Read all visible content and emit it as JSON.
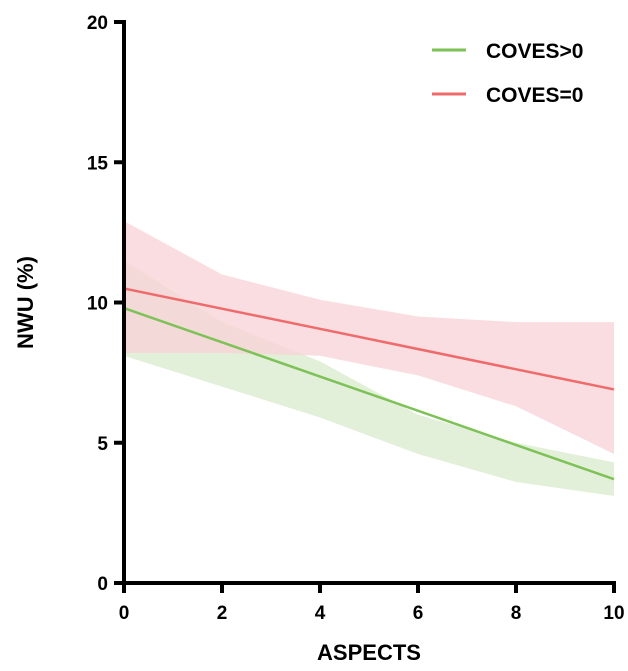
{
  "chart_data": {
    "type": "line",
    "title": "",
    "xlabel": "ASPECTS",
    "ylabel": "NWU (%)",
    "xlim": [
      0,
      10
    ],
    "ylim": [
      0,
      20
    ],
    "xticks": [
      0,
      2,
      4,
      6,
      8,
      10
    ],
    "yticks": [
      0,
      5,
      10,
      15,
      20
    ],
    "grid": false,
    "legend_position": "top-right",
    "series": [
      {
        "name": "COVES>0",
        "color": "#7dc157",
        "band_color": "#d9ebcc",
        "x": [
          0,
          10
        ],
        "y": [
          9.8,
          3.7
        ],
        "ci_x": [
          0,
          2,
          4,
          6,
          8,
          10
        ],
        "ci_lower": [
          8.1,
          7.0,
          5.9,
          4.6,
          3.6,
          3.1
        ],
        "ci_upper": [
          11.5,
          9.3,
          7.9,
          6.0,
          5.0,
          4.3
        ]
      },
      {
        "name": "COVES=0",
        "color": "#ef6b6b",
        "band_color": "#f8d2d5",
        "x": [
          0,
          10
        ],
        "y": [
          10.5,
          6.9
        ],
        "ci_x": [
          0,
          2,
          4,
          6,
          8,
          10
        ],
        "ci_lower": [
          8.2,
          8.2,
          8.1,
          7.4,
          6.3,
          4.6
        ],
        "ci_upper": [
          12.9,
          11.0,
          10.1,
          9.5,
          9.3,
          9.3
        ]
      }
    ]
  }
}
